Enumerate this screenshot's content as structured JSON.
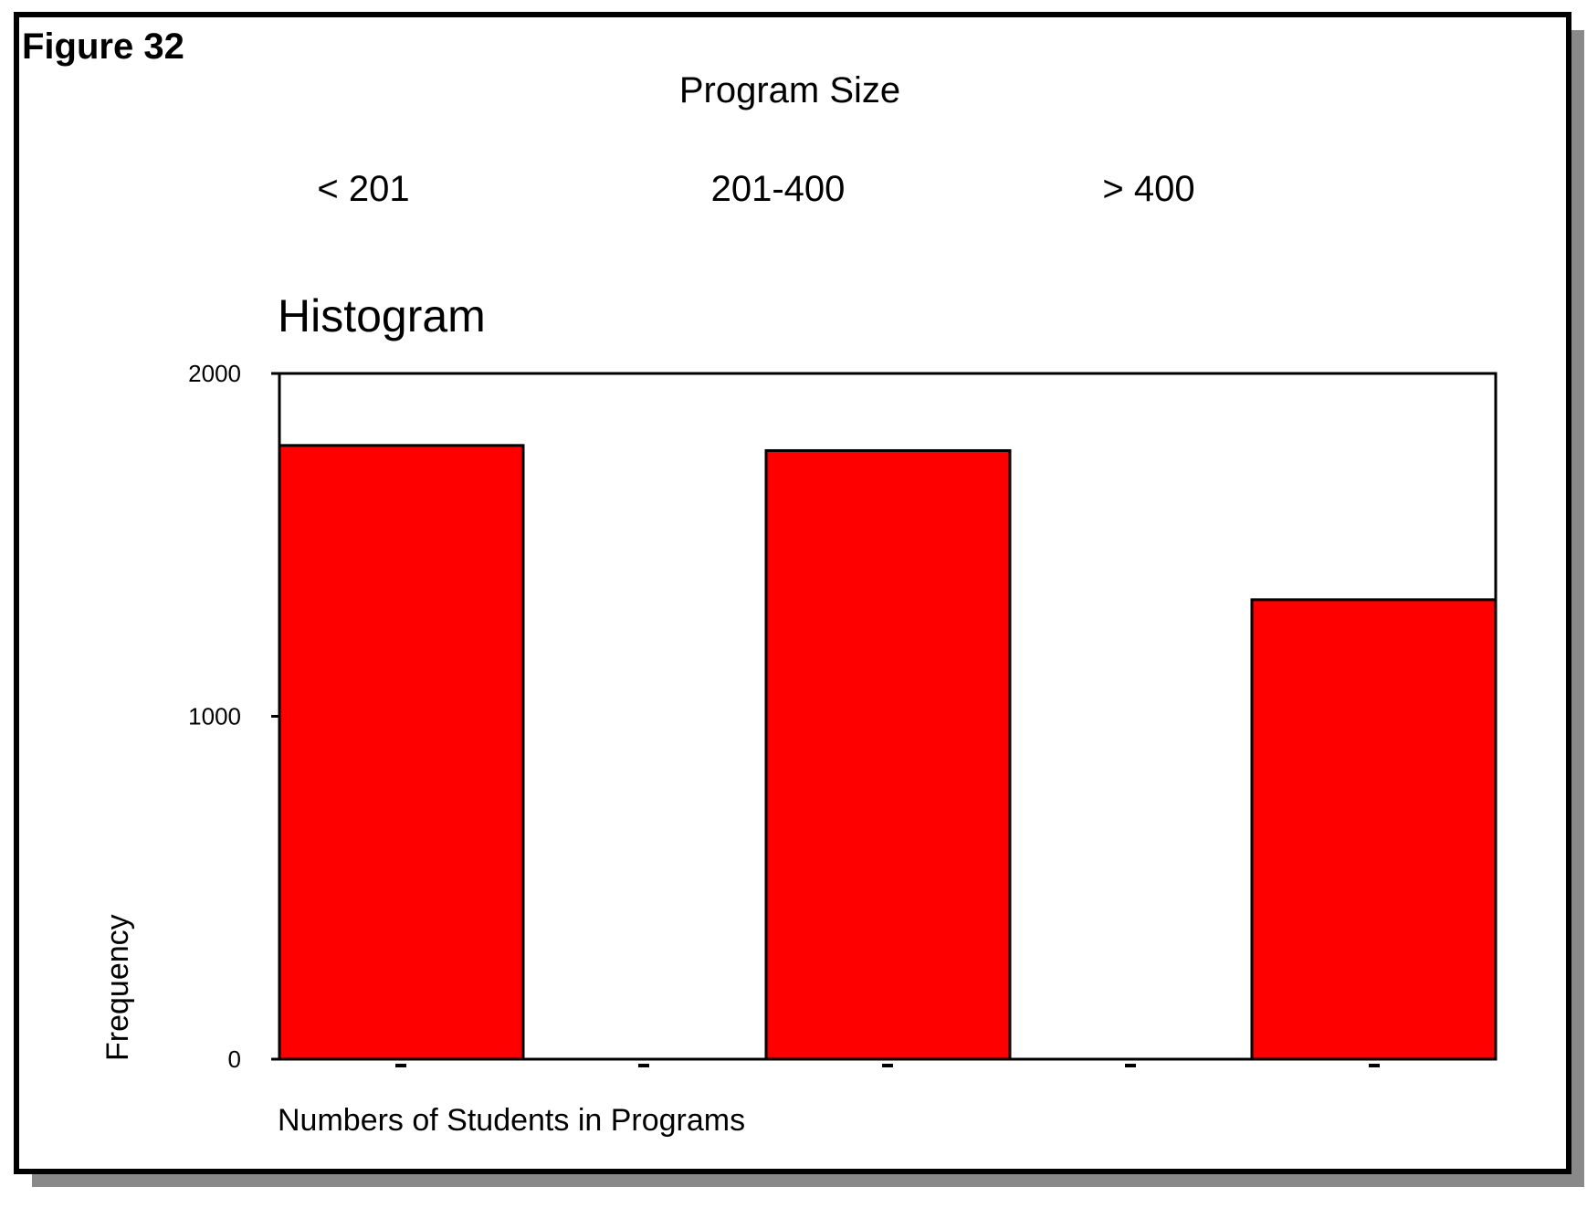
{
  "figure_label": "Figure 32",
  "chart_data": {
    "type": "bar",
    "supertitle": "Program Size",
    "title": "Histogram",
    "categories": [
      "< 201",
      "201-400",
      "> 400"
    ],
    "values": [
      1790,
      1775,
      1340
    ],
    "xlabel": "Numbers of Students in Programs",
    "ylabel": "Frequency",
    "ylim": [
      0,
      2000
    ],
    "yticks": [
      0,
      1000,
      2000
    ],
    "ytick_labels": [
      "0",
      "1000",
      "2000"
    ],
    "grid": false,
    "colors": {
      "bar": "#ff0000",
      "frame_shadow": "#898989",
      "axis": "#000000"
    }
  }
}
